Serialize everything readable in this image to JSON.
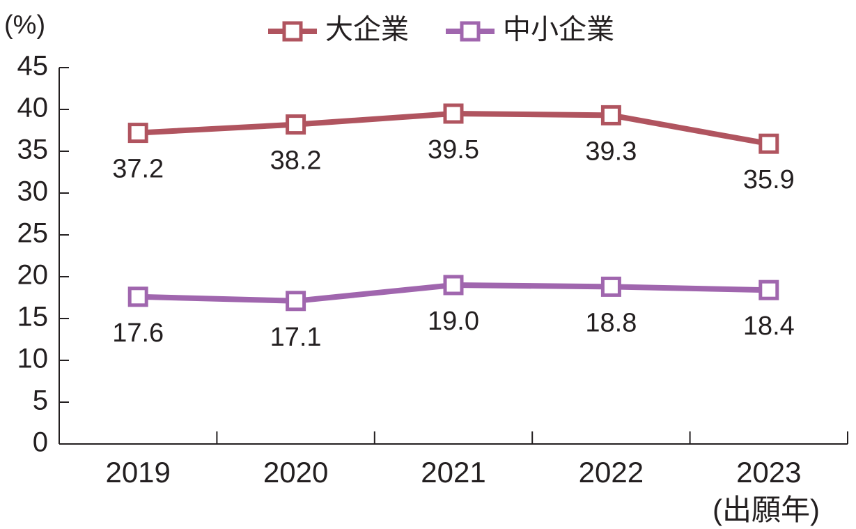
{
  "chart_data": {
    "type": "line",
    "categories": [
      "2019",
      "2020",
      "2021",
      "2022",
      "2023"
    ],
    "x_unit_label": "(出願年)",
    "y_unit_label": "(%)",
    "ylim": [
      0,
      45
    ],
    "yticks": [
      0,
      5,
      10,
      15,
      20,
      25,
      30,
      35,
      40,
      45
    ],
    "grid": false,
    "legend_position": "top-center",
    "series": [
      {
        "name": "大企業",
        "color": "#b0545f",
        "marker": "open-square",
        "values": [
          37.2,
          38.2,
          39.5,
          39.3,
          35.9
        ],
        "labels": [
          "37.2",
          "38.2",
          "39.5",
          "39.3",
          "35.9"
        ]
      },
      {
        "name": "中小企業",
        "color": "#a066ae",
        "marker": "open-square",
        "values": [
          17.6,
          17.1,
          19.0,
          18.8,
          18.4
        ],
        "labels": [
          "17.6",
          "17.1",
          "19.0",
          "18.8",
          "18.4"
        ]
      }
    ]
  }
}
